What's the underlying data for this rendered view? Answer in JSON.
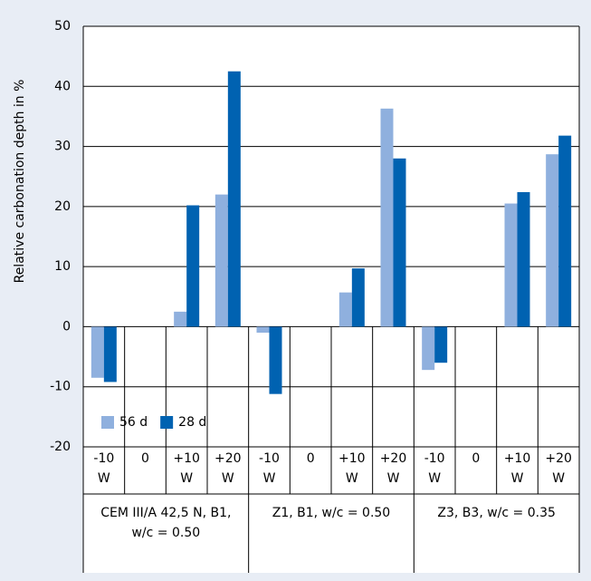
{
  "chart_data": {
    "type": "bar",
    "y_label": "Relative carbonation depth in %",
    "categories": [
      "-10 W",
      "0",
      "+10 W",
      "+20 W",
      "-10 W",
      "0",
      "+10 W",
      "+20 W",
      "-10 W",
      "0",
      "+10 W",
      "+20 W"
    ],
    "groups": [
      "CEM III/A 42,5 N, B1, w/c = 0.50",
      "Z1, B1, w/c = 0.50",
      "Z3, B3, w/c = 0.35"
    ],
    "series": [
      {
        "name": "56 d",
        "color": "#8fb0de",
        "values": [
          -8.5,
          0,
          2.5,
          22,
          -1,
          0,
          5.7,
          36.3,
          -7.2,
          0,
          20.5,
          28.7
        ]
      },
      {
        "name": "28 d",
        "color": "#0062b1",
        "values": [
          -9.2,
          0,
          20.2,
          42.5,
          -11.2,
          0,
          9.7,
          28,
          -6,
          0,
          22.4,
          31.8
        ]
      }
    ],
    "ylim": [
      -20,
      50
    ],
    "yticks": [
      -20,
      -10,
      0,
      10,
      20,
      30,
      40,
      50
    ],
    "grid": true,
    "legend": "lower left"
  }
}
